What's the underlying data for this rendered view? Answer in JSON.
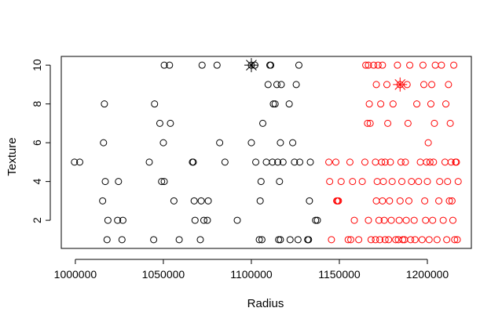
{
  "chart_data": {
    "type": "scatter",
    "title": "",
    "xlabel": "Radius",
    "ylabel": "Texture",
    "xlim": [
      992000,
      1225000
    ],
    "ylim": [
      0.55,
      10.45
    ],
    "x_ticks": [
      1000000,
      1050000,
      1100000,
      1150000,
      1200000
    ],
    "x_tick_labels": [
      "1000000",
      "1050000",
      "1100000",
      "1150000",
      "1200000"
    ],
    "y_ticks": [
      2,
      4,
      6,
      8,
      10
    ],
    "y_tick_labels": [
      "2",
      "4",
      "6",
      "8",
      "10"
    ],
    "grid": false,
    "legend": "none",
    "series": [
      {
        "color": "#000000",
        "marker": "circle-open",
        "points": [
          [
            999500,
            5
          ],
          [
            1002500,
            5
          ],
          [
            1015500,
            3
          ],
          [
            1016000,
            6
          ],
          [
            1016500,
            8
          ],
          [
            1017000,
            4
          ],
          [
            1018000,
            1
          ],
          [
            1018500,
            2
          ],
          [
            1024000,
            2
          ],
          [
            1024500,
            4
          ],
          [
            1026500,
            1
          ],
          [
            1027000,
            2
          ],
          [
            1042000,
            5
          ],
          [
            1044500,
            1
          ],
          [
            1045000,
            8
          ],
          [
            1048000,
            7
          ],
          [
            1049000,
            4
          ],
          [
            1050500,
            4
          ],
          [
            1050000,
            6
          ],
          [
            1050500,
            10
          ],
          [
            1053500,
            10
          ],
          [
            1054000,
            7
          ],
          [
            1056000,
            3
          ],
          [
            1059000,
            1
          ],
          [
            1066500,
            5
          ],
          [
            1067000,
            5
          ],
          [
            1067500,
            3
          ],
          [
            1068000,
            2
          ],
          [
            1071000,
            1
          ],
          [
            1071500,
            3
          ],
          [
            1072000,
            10
          ],
          [
            1073000,
            2
          ],
          [
            1075000,
            2
          ],
          [
            1075500,
            3
          ],
          [
            1080500,
            10
          ],
          [
            1082000,
            6
          ],
          [
            1085000,
            5
          ],
          [
            1092000,
            2
          ],
          [
            1100000,
            6
          ],
          [
            1102000,
            10
          ],
          [
            1102500,
            5
          ],
          [
            1104500,
            1
          ],
          [
            1105000,
            3
          ],
          [
            1105500,
            4
          ],
          [
            1106000,
            1
          ],
          [
            1106500,
            7
          ],
          [
            1108500,
            5
          ],
          [
            1109500,
            9
          ],
          [
            1110500,
            10
          ],
          [
            1111000,
            10
          ],
          [
            1112000,
            5
          ],
          [
            1112500,
            8
          ],
          [
            1113500,
            8
          ],
          [
            1114500,
            9
          ],
          [
            1115000,
            5
          ],
          [
            1115500,
            1
          ],
          [
            1116000,
            4
          ],
          [
            1116500,
            1
          ],
          [
            1116500,
            6
          ],
          [
            1117000,
            9
          ],
          [
            1118000,
            5
          ],
          [
            1121500,
            8
          ],
          [
            1122000,
            1
          ],
          [
            1123500,
            6
          ],
          [
            1124500,
            5
          ],
          [
            1125500,
            9
          ],
          [
            1126500,
            1
          ],
          [
            1127000,
            10
          ],
          [
            1127500,
            5
          ],
          [
            1132000,
            1
          ],
          [
            1132500,
            1
          ],
          [
            1133000,
            3
          ],
          [
            1133500,
            5
          ],
          [
            1136500,
            2
          ],
          [
            1137500,
            2
          ]
        ]
      },
      {
        "color": "#ff0000",
        "marker": "circle-open",
        "points": [
          [
            1144000,
            5
          ],
          [
            1144500,
            4
          ],
          [
            1145500,
            1
          ],
          [
            1148000,
            5
          ],
          [
            1148500,
            3
          ],
          [
            1149000,
            3
          ],
          [
            1149500,
            3
          ],
          [
            1151000,
            4
          ],
          [
            1155000,
            1
          ],
          [
            1156500,
            1
          ],
          [
            1156000,
            5
          ],
          [
            1157500,
            4
          ],
          [
            1158500,
            2
          ],
          [
            1161000,
            1
          ],
          [
            1163000,
            4
          ],
          [
            1164500,
            5
          ],
          [
            1165000,
            10
          ],
          [
            1166500,
            10
          ],
          [
            1166000,
            7
          ],
          [
            1167000,
            8
          ],
          [
            1167500,
            7
          ],
          [
            1166500,
            2
          ],
          [
            1168000,
            1
          ],
          [
            1169500,
            10
          ],
          [
            1170500,
            1
          ],
          [
            1171000,
            9
          ],
          [
            1171000,
            3
          ],
          [
            1170500,
            5
          ],
          [
            1171500,
            4
          ],
          [
            1172000,
            10
          ],
          [
            1172500,
            2
          ],
          [
            1173000,
            1
          ],
          [
            1173500,
            8
          ],
          [
            1174000,
            5
          ],
          [
            1174500,
            3
          ],
          [
            1174500,
            10
          ],
          [
            1175000,
            4
          ],
          [
            1175500,
            2
          ],
          [
            1176000,
            1
          ],
          [
            1176000,
            5
          ],
          [
            1177000,
            9
          ],
          [
            1177500,
            7
          ],
          [
            1178000,
            1
          ],
          [
            1178500,
            3
          ],
          [
            1179000,
            5
          ],
          [
            1179500,
            2
          ],
          [
            1180000,
            4
          ],
          [
            1180500,
            8
          ],
          [
            1182000,
            1
          ],
          [
            1183000,
            10
          ],
          [
            1183500,
            1
          ],
          [
            1184000,
            2
          ],
          [
            1184500,
            3
          ],
          [
            1185000,
            5
          ],
          [
            1185500,
            4
          ],
          [
            1186000,
            1
          ],
          [
            1187000,
            1
          ],
          [
            1187500,
            5
          ],
          [
            1188000,
            2
          ],
          [
            1188500,
            9
          ],
          [
            1189000,
            7
          ],
          [
            1189500,
            3
          ],
          [
            1190000,
            10
          ],
          [
            1190500,
            1
          ],
          [
            1191000,
            4
          ],
          [
            1192500,
            2
          ],
          [
            1193000,
            1
          ],
          [
            1194000,
            8
          ],
          [
            1195000,
            4
          ],
          [
            1196000,
            5
          ],
          [
            1197000,
            1
          ],
          [
            1197500,
            10
          ],
          [
            1198000,
            9
          ],
          [
            1198500,
            3
          ],
          [
            1199000,
            2
          ],
          [
            1199500,
            5
          ],
          [
            1200000,
            4
          ],
          [
            1200500,
            6
          ],
          [
            1201000,
            1
          ],
          [
            1201500,
            5
          ],
          [
            1202000,
            8
          ],
          [
            1202500,
            9
          ],
          [
            1203000,
            2
          ],
          [
            1203500,
            5
          ],
          [
            1204000,
            7
          ],
          [
            1204500,
            10
          ],
          [
            1205500,
            1
          ],
          [
            1206500,
            3
          ],
          [
            1207000,
            4
          ],
          [
            1208000,
            10
          ],
          [
            1209000,
            2
          ],
          [
            1210000,
            5
          ],
          [
            1210500,
            8
          ],
          [
            1211000,
            1
          ],
          [
            1211500,
            4
          ],
          [
            1212000,
            9
          ],
          [
            1212500,
            3
          ],
          [
            1213000,
            7
          ],
          [
            1213500,
            5
          ],
          [
            1214000,
            3
          ],
          [
            1214500,
            2
          ],
          [
            1215000,
            10
          ],
          [
            1215500,
            1
          ],
          [
            1216000,
            5
          ],
          [
            1216500,
            5
          ],
          [
            1217000,
            1
          ],
          [
            1217500,
            4
          ]
        ]
      }
    ],
    "highlighted_points": [
      {
        "color": "#000000",
        "marker": "asterisk",
        "x": 1100000,
        "y": 10
      },
      {
        "color": "#ff0000",
        "marker": "asterisk",
        "x": 1184500,
        "y": 9
      }
    ]
  }
}
